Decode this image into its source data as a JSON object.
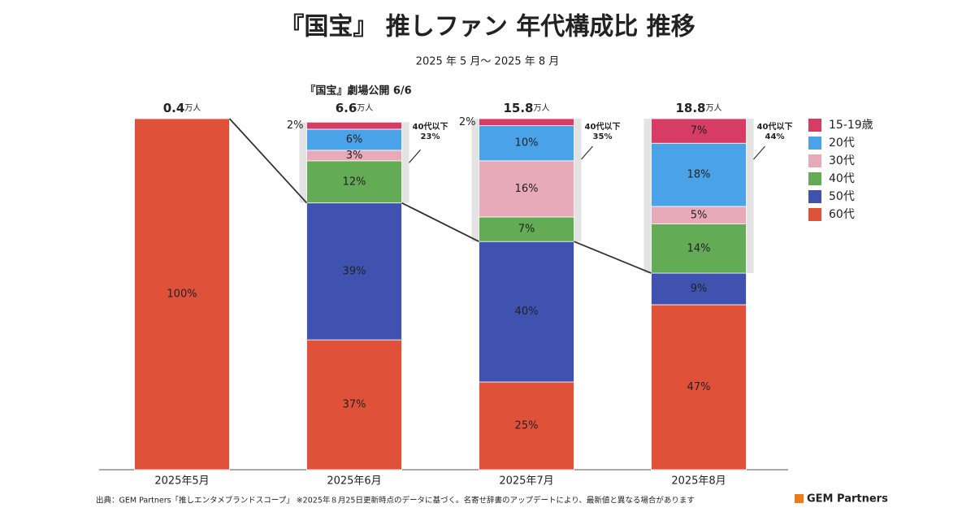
{
  "chart_data": {
    "type": "stacked_bar",
    "title": "『国宝』 推しファン 年代構成比 推移",
    "subtitle": "2025 年 5 月～ 2025 年 8 月",
    "categories": [
      "2025年5月",
      "2025年6月",
      "2025年7月",
      "2025年8月"
    ],
    "ylim": [
      0,
      100
    ],
    "series": [
      {
        "name": "60代",
        "color": "#e0513a",
        "text_color": "#ffffff",
        "values": [
          100,
          37,
          25,
          47
        ],
        "value_labels": [
          "100%",
          "37%",
          "25%",
          "47%"
        ]
      },
      {
        "name": "50代",
        "color": "#3f52b0",
        "text_color": "#ffffff",
        "values": [
          null,
          39,
          40,
          9
        ],
        "value_labels": [
          null,
          "39%",
          "40%",
          "9%"
        ]
      },
      {
        "name": "40代",
        "color": "#63ab55",
        "text_color": "#ffffff",
        "values": [
          null,
          12,
          7,
          14
        ],
        "value_labels": [
          null,
          "12%",
          "7%",
          "14%"
        ]
      },
      {
        "name": "30代",
        "color": "#e8aab8",
        "text_color": "#222222",
        "values": [
          null,
          3,
          16,
          5
        ],
        "value_labels": [
          null,
          "3%",
          "16%",
          "5%"
        ]
      },
      {
        "name": "20代",
        "color": "#4aa3e8",
        "text_color": "#ffffff",
        "values": [
          null,
          6,
          10,
          18
        ],
        "value_labels": [
          null,
          "6%",
          "10%",
          "18%"
        ]
      },
      {
        "name": "15-19歳",
        "color": "#d63c64",
        "text_color": "#ffffff",
        "values": [
          null,
          2,
          2,
          7
        ],
        "value_labels": [
          null,
          "2%",
          "2%",
          "7%"
        ]
      }
    ],
    "totals": {
      "values": [
        0.4,
        6.6,
        15.8,
        18.8
      ],
      "unit": "万人"
    },
    "under40": {
      "label": "40代以下",
      "values": [
        null,
        23,
        35,
        44
      ],
      "value_labels": [
        null,
        "23%",
        "35%",
        "44%"
      ]
    },
    "annotation": "『国宝』劇場公開 6/6",
    "source": "出典：GEM Partners「推しエンタメブランドスコープ」 ※2025年８月25日更新時点のデータに基づく。名寄せ辞書のアップデートにより、最新値と異なる場合があります",
    "logo": "GEM Partners"
  }
}
